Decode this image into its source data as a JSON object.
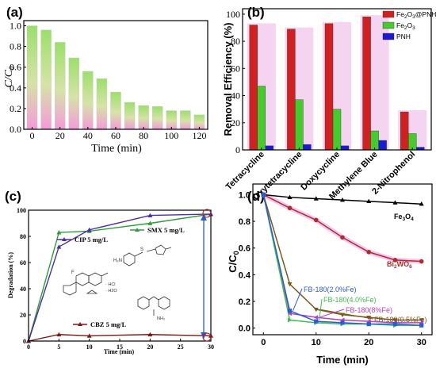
{
  "panels": {
    "a": "(a)",
    "b": "(b)",
    "c": "(c)",
    "d": "(d)"
  },
  "chart_data": [
    {
      "type": "bar",
      "title": "",
      "xlabel": "Time (min)",
      "ylabel": "C/C0",
      "x": [
        0,
        10,
        20,
        30,
        40,
        50,
        60,
        70,
        80,
        90,
        100,
        110,
        120
      ],
      "values": [
        1.0,
        0.96,
        0.84,
        0.69,
        0.56,
        0.49,
        0.36,
        0.26,
        0.23,
        0.22,
        0.18,
        0.18,
        0.14
      ],
      "xticks": [
        "0",
        "20",
        "40",
        "60",
        "80",
        "100",
        "120"
      ],
      "yticks": [
        "0.0",
        "0.2",
        "0.4",
        "0.6",
        "0.8",
        "1.0"
      ],
      "ylim": [
        0,
        1.0
      ]
    },
    {
      "type": "bar",
      "xlabel": "",
      "ylabel": "Removal Efficiency (%)",
      "categories": [
        "Tetracycline",
        "Oxytetracycline",
        "Doxycycline",
        "Methylene Blue",
        "2-Nitrophenol"
      ],
      "series": [
        {
          "name": "Fe2O3@PNH",
          "color": "#d1201f",
          "values": [
            92,
            89,
            93,
            98,
            28
          ]
        },
        {
          "name": "Fe2O3",
          "color": "#44cc2c",
          "values": [
            47,
            37,
            30,
            14,
            12
          ]
        },
        {
          "name": "PNH",
          "color": "#1a1ad6",
          "values": [
            3,
            4,
            3,
            7,
            2
          ]
        }
      ],
      "legend_labels": [
        {
          "main": "Fe",
          "sub1": "2",
          "mid": "O",
          "sub2": "3",
          "tail": "@PNH"
        },
        {
          "main": "Fe",
          "sub1": "2",
          "mid": "O",
          "sub2": "3",
          "tail": ""
        },
        {
          "main": "PNH",
          "sub1": "",
          "mid": "",
          "sub2": "",
          "tail": ""
        }
      ],
      "yticks": [
        "0",
        "20",
        "40",
        "60",
        "80",
        "100"
      ],
      "ylim": [
        0,
        100
      ],
      "legend": "top-right"
    },
    {
      "type": "line",
      "xlabel": "Time (min)",
      "ylabel": "Degradation (%)",
      "x": [
        0,
        5,
        10,
        20,
        30
      ],
      "series": [
        {
          "name": "SMX 5 mg/L",
          "color": "#2e9e3a",
          "values": [
            0,
            83,
            84,
            90,
            97
          ]
        },
        {
          "name": "CIP 5 mg/L",
          "color": "#4b2fa0",
          "values": [
            0,
            72,
            85,
            96,
            97
          ]
        },
        {
          "name": "CBZ 5 mg/L",
          "color": "#7a1a1a",
          "values": [
            0,
            5,
            4,
            5,
            4
          ]
        }
      ],
      "xticks": [
        "0",
        "5",
        "10",
        "15",
        "20",
        "25",
        "30"
      ],
      "yticks": [
        "0",
        "20",
        "40",
        "60",
        "80",
        "100"
      ],
      "ylim": [
        0,
        100
      ],
      "annotations": [
        "HCl",
        "H2O"
      ]
    },
    {
      "type": "line",
      "xlabel": "Time (min)",
      "ylabel": "C/C0",
      "x": [
        0,
        5,
        10,
        15,
        20,
        25,
        30
      ],
      "series": [
        {
          "name": "Fe3O4",
          "color": "#000000",
          "values": [
            1.0,
            0.98,
            0.97,
            0.96,
            0.95,
            0.94,
            0.93
          ]
        },
        {
          "name": "Bi2WO6",
          "color": "#b02c2c",
          "values": [
            1.0,
            0.9,
            0.81,
            0.68,
            0.57,
            0.51,
            0.5
          ]
        },
        {
          "name": "FB-180(0.5%Fe)",
          "color": "#7a5a1a",
          "values": [
            1.0,
            0.33,
            0.14,
            0.1,
            0.08,
            0.06,
            0.06
          ]
        },
        {
          "name": "FB-180(8%Fe)",
          "color": "#b840c0",
          "values": [
            1.0,
            0.11,
            0.08,
            0.06,
            0.05,
            0.04,
            0.04
          ]
        },
        {
          "name": "FB-180(4.0%Fe)",
          "color": "#3fbf4c",
          "values": [
            1.0,
            0.06,
            0.04,
            0.03,
            0.03,
            0.02,
            0.02
          ]
        },
        {
          "name": "FB-180(2.0%Fe)",
          "color": "#2a5bd8",
          "values": [
            1.0,
            0.13,
            0.05,
            0.04,
            0.03,
            0.03,
            0.02
          ]
        }
      ],
      "series_labels": [
        {
          "main": "Fe",
          "sub1": "3",
          "mid": "O",
          "sub2": "4"
        },
        {
          "main": "Bi",
          "sub1": "2",
          "mid": "WO",
          "sub2": "6"
        }
      ],
      "xticks": [
        "0",
        "10",
        "20",
        "30"
      ],
      "yticks": [
        "0.0",
        "0.2",
        "0.4",
        "0.6",
        "0.8",
        "1.0"
      ],
      "ylim": [
        0,
        1.0
      ]
    }
  ]
}
